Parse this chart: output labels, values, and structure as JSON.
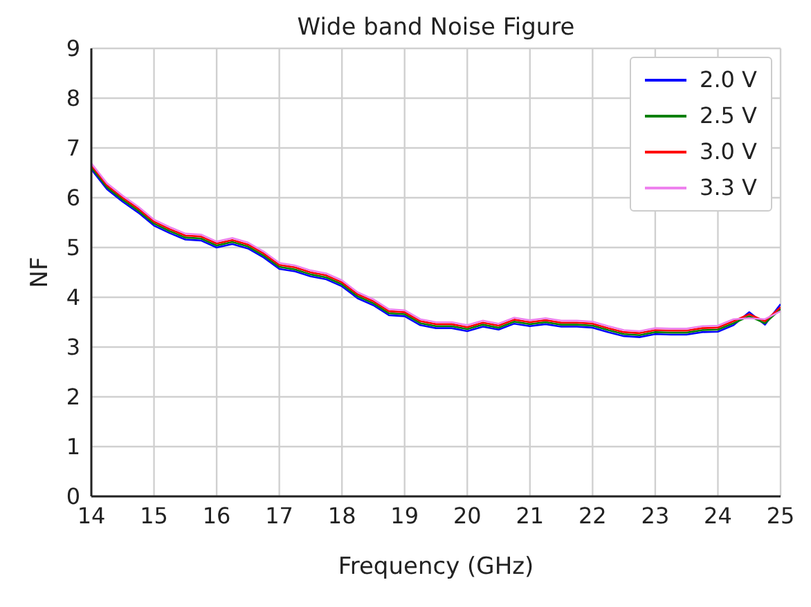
{
  "chart_data": {
    "type": "line",
    "title": "Wide band Noise Figure",
    "xlabel": "Frequency (GHz)",
    "ylabel": "NF",
    "x": [
      14,
      14.25,
      14.5,
      14.75,
      15,
      15.25,
      15.5,
      15.75,
      16,
      16.25,
      16.5,
      16.75,
      17,
      17.25,
      17.5,
      17.75,
      18,
      18.25,
      18.5,
      18.75,
      19,
      19.25,
      19.5,
      19.75,
      20,
      20.25,
      20.5,
      20.75,
      21,
      21.25,
      21.5,
      21.75,
      22,
      22.25,
      22.5,
      22.75,
      23,
      23.25,
      23.5,
      23.75,
      24,
      24.25,
      24.5,
      24.75,
      25
    ],
    "series": [
      {
        "name": "2.0 V",
        "color": "#0000ff",
        "values": [
          6.57,
          6.17,
          5.92,
          5.7,
          5.44,
          5.29,
          5.16,
          5.14,
          5.0,
          5.07,
          4.98,
          4.8,
          4.57,
          4.52,
          4.42,
          4.36,
          4.22,
          3.98,
          3.84,
          3.64,
          3.62,
          3.44,
          3.38,
          3.38,
          3.32,
          3.41,
          3.35,
          3.47,
          3.42,
          3.46,
          3.41,
          3.41,
          3.39,
          3.3,
          3.22,
          3.2,
          3.26,
          3.25,
          3.25,
          3.3,
          3.31,
          3.44,
          3.7,
          3.45,
          3.86
        ]
      },
      {
        "name": "2.5 V",
        "color": "#008000",
        "values": [
          6.61,
          6.21,
          5.96,
          5.74,
          5.48,
          5.33,
          5.2,
          5.18,
          5.04,
          5.11,
          5.02,
          4.84,
          4.61,
          4.56,
          4.46,
          4.4,
          4.26,
          4.02,
          3.88,
          3.68,
          3.66,
          3.48,
          3.42,
          3.42,
          3.36,
          3.45,
          3.39,
          3.51,
          3.46,
          3.5,
          3.45,
          3.45,
          3.43,
          3.34,
          3.26,
          3.24,
          3.3,
          3.29,
          3.29,
          3.34,
          3.35,
          3.48,
          3.62,
          3.48,
          3.76
        ]
      },
      {
        "name": "3.0 V",
        "color": "#ff0000",
        "values": [
          6.65,
          6.25,
          6.0,
          5.78,
          5.52,
          5.37,
          5.24,
          5.22,
          5.08,
          5.15,
          5.06,
          4.88,
          4.65,
          4.6,
          4.5,
          4.44,
          4.3,
          4.06,
          3.92,
          3.72,
          3.7,
          3.52,
          3.46,
          3.46,
          3.4,
          3.49,
          3.43,
          3.55,
          3.5,
          3.54,
          3.49,
          3.49,
          3.47,
          3.38,
          3.3,
          3.28,
          3.34,
          3.33,
          3.33,
          3.38,
          3.39,
          3.52,
          3.66,
          3.52,
          3.8
        ]
      },
      {
        "name": "3.3 V",
        "color": "#ee82ee",
        "values": [
          6.69,
          6.29,
          6.04,
          5.82,
          5.56,
          5.41,
          5.28,
          5.26,
          5.12,
          5.19,
          5.1,
          4.92,
          4.69,
          4.64,
          4.54,
          4.48,
          4.34,
          4.1,
          3.96,
          3.76,
          3.74,
          3.56,
          3.5,
          3.5,
          3.44,
          3.53,
          3.47,
          3.59,
          3.54,
          3.58,
          3.53,
          3.53,
          3.51,
          3.42,
          3.34,
          3.32,
          3.38,
          3.37,
          3.37,
          3.42,
          3.43,
          3.56,
          3.58,
          3.56,
          3.72
        ]
      }
    ],
    "xlim": [
      14,
      25
    ],
    "xticks": [
      14,
      15,
      16,
      17,
      18,
      19,
      20,
      21,
      22,
      23,
      24,
      25
    ],
    "ylim": [
      0,
      9
    ],
    "yticks": [
      0,
      1,
      2,
      3,
      4,
      5,
      6,
      7,
      8,
      9
    ],
    "grid": true,
    "legend": "top right",
    "marker": "none",
    "line_style": "solid"
  }
}
